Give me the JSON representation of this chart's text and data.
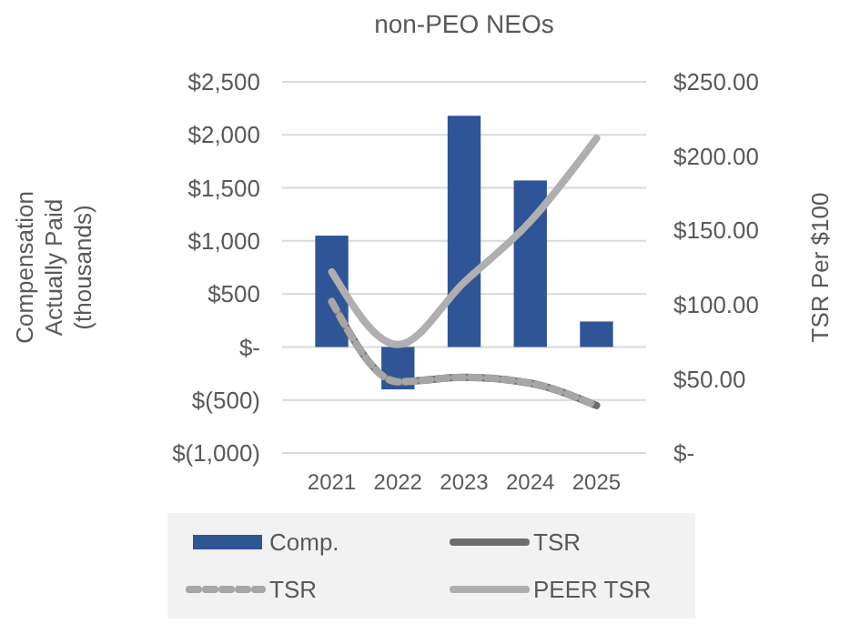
{
  "chart_data": {
    "type": "bar",
    "title": "non-PEO NEOs",
    "ylabel": "Compensation\nActually Paid\n(thousands)",
    "y2label": "TSR Per $100",
    "categories": [
      "2021",
      "2022",
      "2023",
      "2024",
      "2025"
    ],
    "series": [
      {
        "name": "Comp.",
        "color": "#2f5597",
        "values": [
          1050,
          -400,
          2180,
          1570,
          240
        ]
      },
      {
        "name": "TSR",
        "type": "line",
        "axis": "y2",
        "color": "#6d6d6d",
        "line_style": "solid",
        "values": [
          102,
          48,
          51,
          47,
          32
        ]
      },
      {
        "name": "TSR",
        "type": "line",
        "axis": "y2",
        "color": "#a6a6a6",
        "line_style": "dashed",
        "values": [
          102,
          48,
          51,
          47,
          32
        ]
      },
      {
        "name": "PEER TSR",
        "type": "line",
        "axis": "y2",
        "color": "#afafaf",
        "line_style": "solid",
        "values": [
          122,
          73,
          115,
          156,
          212
        ]
      }
    ],
    "ylim": [
      -1000,
      2500
    ],
    "yticks": [
      {
        "value": -1000,
        "label": "$(1,000)"
      },
      {
        "value": -500,
        "label": "$(500)"
      },
      {
        "value": 0,
        "label": "$-"
      },
      {
        "value": 500,
        "label": "$500"
      },
      {
        "value": 1000,
        "label": "$1,000"
      },
      {
        "value": 1500,
        "label": "$1,500"
      },
      {
        "value": 2000,
        "label": "$2,000"
      },
      {
        "value": 2500,
        "label": "$2,500"
      }
    ],
    "y2lim": [
      0,
      250
    ],
    "y2ticks": [
      {
        "value": 0,
        "label": "$-"
      },
      {
        "value": 50,
        "label": "$50.00"
      },
      {
        "value": 100,
        "label": "$100.00"
      },
      {
        "value": 150,
        "label": "$150.00"
      },
      {
        "value": 200,
        "label": "$200.00"
      },
      {
        "value": 250,
        "label": "$250.00"
      }
    ],
    "grid": "y",
    "legend": "bottom"
  }
}
